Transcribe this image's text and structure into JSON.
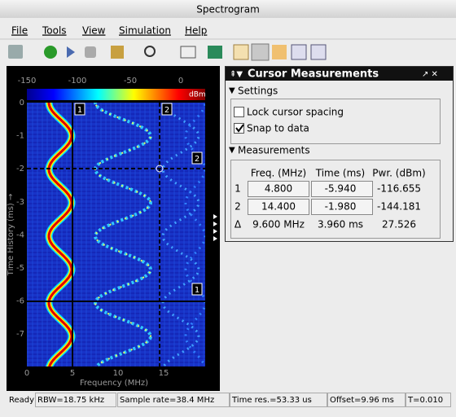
{
  "window": {
    "title": "Spectrogram"
  },
  "menu": [
    "File",
    "Tools",
    "View",
    "Simulation",
    "Help"
  ],
  "plot": {
    "colorbar_ticks": [
      "-150",
      "-100",
      "-50",
      "0"
    ],
    "colorbar_unit": "dBm",
    "x_ticks": [
      "0",
      "5",
      "10",
      "15"
    ],
    "y_ticks": [
      "0",
      "-1",
      "-2",
      "-3",
      "-4",
      "-5",
      "-6",
      "-7"
    ],
    "x_label": "Frequency (MHz)",
    "y_label": "Time History (ms) →",
    "cursor_markers": [
      "1",
      "2",
      "2",
      "1"
    ]
  },
  "panel": {
    "title": "Cursor Measurements",
    "settings": "Settings",
    "checkboxes": [
      "Lock cursor spacing",
      "Snap to data"
    ],
    "measurements": "Measurements",
    "headers": [
      "Freq. (MHz)",
      "Time (ms)",
      "Pwr. (dBm)"
    ],
    "rows": [
      [
        "1",
        "4.800",
        "-5.940",
        "-116.655"
      ],
      [
        "2",
        "14.400",
        "-1.980",
        "-144.181"
      ],
      [
        "Δ",
        "9.600 MHz",
        "3.960 ms",
        "27.526"
      ]
    ]
  },
  "status": [
    "Ready",
    "RBW=18.75 kHz",
    "Sample rate=38.4 MHz",
    "Time res.=53.33 us",
    "Offset=9.96 ms",
    "T=0.010"
  ]
}
